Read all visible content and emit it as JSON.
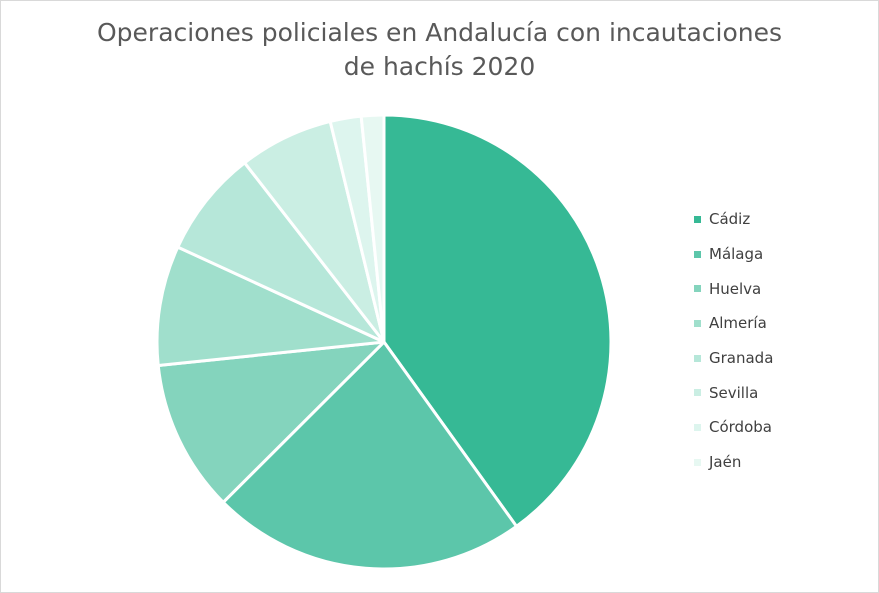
{
  "chart_data": {
    "type": "pie",
    "title_lines": [
      "Operaciones policiales en Andalucía con incautaciones",
      "de hachís 2020"
    ],
    "legend_position": "right",
    "categories": [
      "Cádiz",
      "Málaga",
      "Huelva",
      "Almería",
      "Granada",
      "Sevilla",
      "Córdoba",
      "Jaén"
    ],
    "values": [
      40.0,
      22.4,
      10.8,
      8.5,
      7.6,
      6.7,
      2.2,
      1.6
    ],
    "value_unit": "percent",
    "colors": [
      "#36b995",
      "#5cc6aa",
      "#84d4bd",
      "#a0dfcc",
      "#b6e7d9",
      "#caeee3",
      "#ddf5ee",
      "#e7f8f2"
    ]
  }
}
